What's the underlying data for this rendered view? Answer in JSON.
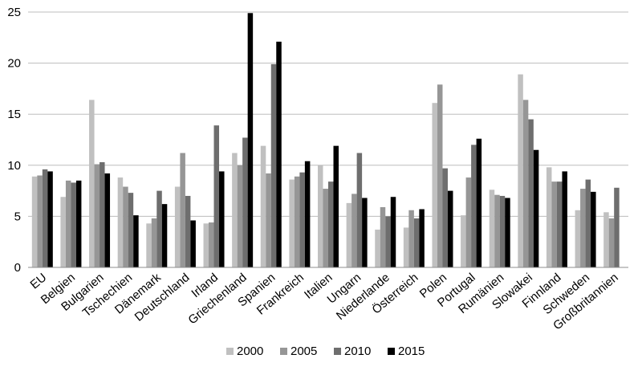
{
  "chart_data": {
    "type": "bar",
    "categories": [
      "EU",
      "Belgien",
      "Bulgarien",
      "Tschechien",
      "Dänemark",
      "Deutschland",
      "Irland",
      "Griechenland",
      "Spanien",
      "Frankreich",
      "Italien",
      "Ungarn",
      "Niederlande",
      "Österreich",
      "Polen",
      "Portugal",
      "Rumänien",
      "Slowakei",
      "Finnland",
      "Schweden",
      "Großbritannien"
    ],
    "series": [
      {
        "name": "2000",
        "color": "#c0c0c0",
        "values": [
          8.9,
          6.9,
          16.4,
          8.8,
          4.3,
          7.9,
          4.3,
          11.2,
          11.9,
          8.6,
          10.0,
          6.3,
          3.7,
          3.9,
          16.1,
          5.1,
          7.6,
          18.9,
          9.8,
          5.6,
          5.4
        ]
      },
      {
        "name": "2005",
        "color": "#969696",
        "values": [
          9.0,
          8.5,
          10.1,
          7.9,
          4.8,
          11.2,
          4.4,
          10.0,
          9.2,
          8.9,
          7.7,
          7.2,
          5.9,
          5.6,
          17.9,
          8.8,
          7.1,
          16.4,
          8.4,
          7.7,
          4.8
        ]
      },
      {
        "name": "2010",
        "color": "#6e6e6e",
        "values": [
          9.6,
          8.3,
          10.3,
          7.3,
          7.5,
          7.0,
          13.9,
          12.7,
          19.9,
          9.3,
          8.4,
          11.2,
          5.0,
          4.8,
          9.7,
          12.0,
          7.0,
          14.5,
          8.4,
          8.6,
          7.8
        ]
      },
      {
        "name": "2015",
        "color": "#000000",
        "values": [
          9.4,
          8.5,
          9.2,
          5.1,
          6.2,
          4.6,
          9.4,
          24.9,
          22.1,
          10.4,
          11.9,
          6.8,
          6.9,
          5.7,
          7.5,
          12.6,
          6.8,
          11.5,
          9.4,
          7.4,
          null
        ]
      }
    ],
    "yticks": [
      0,
      5,
      10,
      15,
      20,
      25
    ],
    "ylim": [
      0,
      25
    ],
    "grid": true,
    "legend": "bottom"
  }
}
